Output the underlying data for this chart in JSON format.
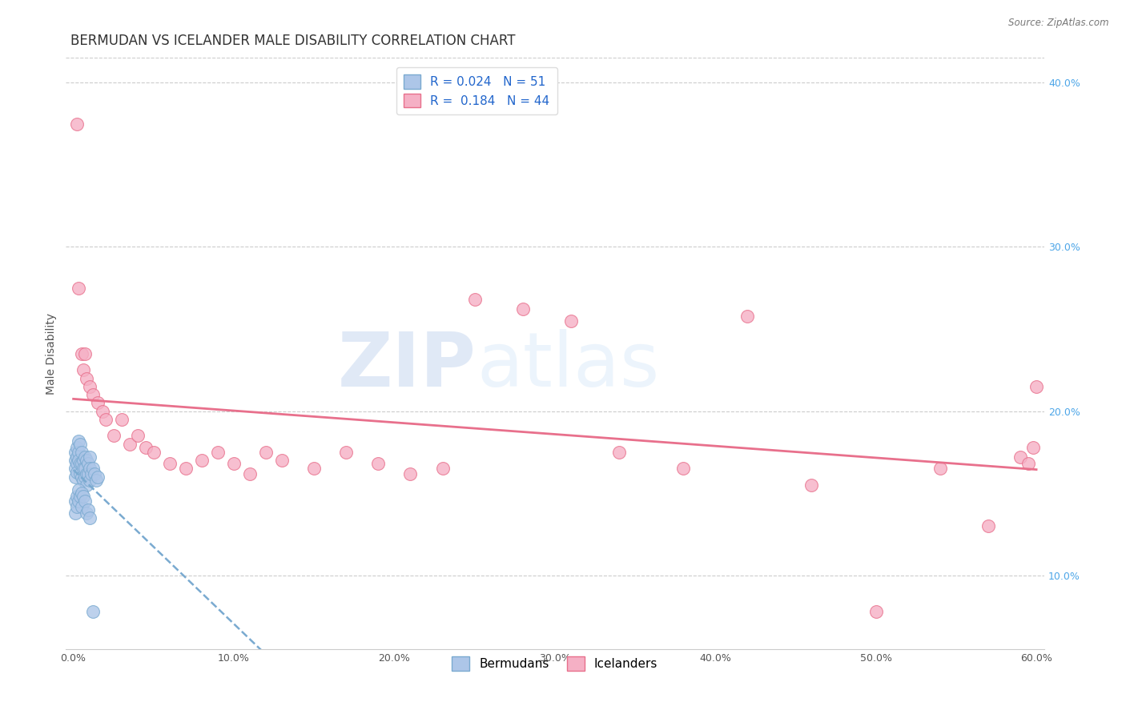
{
  "title": "BERMUDAN VS ICELANDER MALE DISABILITY CORRELATION CHART",
  "source": "Source: ZipAtlas.com",
  "ylabel": "Male Disability",
  "xlim": [
    -0.005,
    0.605
  ],
  "ylim": [
    0.055,
    0.415
  ],
  "xticks": [
    0.0,
    0.1,
    0.2,
    0.3,
    0.4,
    0.5,
    0.6
  ],
  "xticklabels": [
    "0.0%",
    "10.0%",
    "20.0%",
    "30.0%",
    "40.0%",
    "50.0%",
    "60.0%"
  ],
  "yticks": [
    0.1,
    0.2,
    0.3,
    0.4
  ],
  "yticklabels": [
    "10.0%",
    "20.0%",
    "30.0%",
    "40.0%"
  ],
  "bermudan_R": 0.024,
  "bermudan_N": 51,
  "icelander_R": 0.184,
  "icelander_N": 44,
  "bermudan_color": "#adc6e8",
  "icelander_color": "#f5b0c5",
  "bermudan_edge_color": "#7aaad0",
  "icelander_edge_color": "#e8708c",
  "bermudan_line_color": "#7aaad0",
  "icelander_line_color": "#e8708c",
  "watermark_zip": "ZIP",
  "watermark_atlas": "atlas",
  "title_fontsize": 12,
  "axis_label_fontsize": 10,
  "tick_fontsize": 9,
  "legend_fontsize": 11,
  "bermudan_x": [
    0.001,
    0.001,
    0.001,
    0.001,
    0.002,
    0.002,
    0.002,
    0.002,
    0.003,
    0.003,
    0.003,
    0.004,
    0.004,
    0.004,
    0.005,
    0.005,
    0.005,
    0.006,
    0.006,
    0.006,
    0.007,
    0.007,
    0.007,
    0.008,
    0.008,
    0.008,
    0.009,
    0.009,
    0.01,
    0.01,
    0.01,
    0.011,
    0.012,
    0.013,
    0.014,
    0.015,
    0.001,
    0.001,
    0.002,
    0.002,
    0.003,
    0.003,
    0.004,
    0.005,
    0.005,
    0.006,
    0.007,
    0.008,
    0.009,
    0.01,
    0.012
  ],
  "bermudan_y": [
    0.175,
    0.17,
    0.165,
    0.16,
    0.178,
    0.172,
    0.168,
    0.163,
    0.182,
    0.175,
    0.17,
    0.18,
    0.168,
    0.162,
    0.175,
    0.168,
    0.16,
    0.17,
    0.165,
    0.158,
    0.172,
    0.165,
    0.16,
    0.17,
    0.162,
    0.155,
    0.168,
    0.162,
    0.172,
    0.165,
    0.158,
    0.162,
    0.165,
    0.162,
    0.158,
    0.16,
    0.145,
    0.138,
    0.148,
    0.142,
    0.152,
    0.145,
    0.148,
    0.15,
    0.142,
    0.148,
    0.145,
    0.138,
    0.14,
    0.135,
    0.078
  ],
  "icelander_x": [
    0.002,
    0.003,
    0.005,
    0.006,
    0.007,
    0.008,
    0.01,
    0.012,
    0.015,
    0.018,
    0.02,
    0.025,
    0.03,
    0.035,
    0.04,
    0.045,
    0.05,
    0.06,
    0.07,
    0.08,
    0.09,
    0.1,
    0.11,
    0.12,
    0.13,
    0.15,
    0.17,
    0.19,
    0.21,
    0.23,
    0.25,
    0.28,
    0.31,
    0.34,
    0.38,
    0.42,
    0.46,
    0.5,
    0.54,
    0.57,
    0.59,
    0.595,
    0.598,
    0.6
  ],
  "icelander_y": [
    0.375,
    0.275,
    0.235,
    0.225,
    0.235,
    0.22,
    0.215,
    0.21,
    0.205,
    0.2,
    0.195,
    0.185,
    0.195,
    0.18,
    0.185,
    0.178,
    0.175,
    0.168,
    0.165,
    0.17,
    0.175,
    0.168,
    0.162,
    0.175,
    0.17,
    0.165,
    0.175,
    0.168,
    0.162,
    0.165,
    0.268,
    0.262,
    0.255,
    0.175,
    0.165,
    0.258,
    0.155,
    0.078,
    0.165,
    0.13,
    0.172,
    0.168,
    0.178,
    0.215
  ],
  "bermudan_line_start_x": 0.001,
  "bermudan_line_end_x": 0.6,
  "icelander_line_start_x": 0.002,
  "icelander_line_end_x": 0.6
}
